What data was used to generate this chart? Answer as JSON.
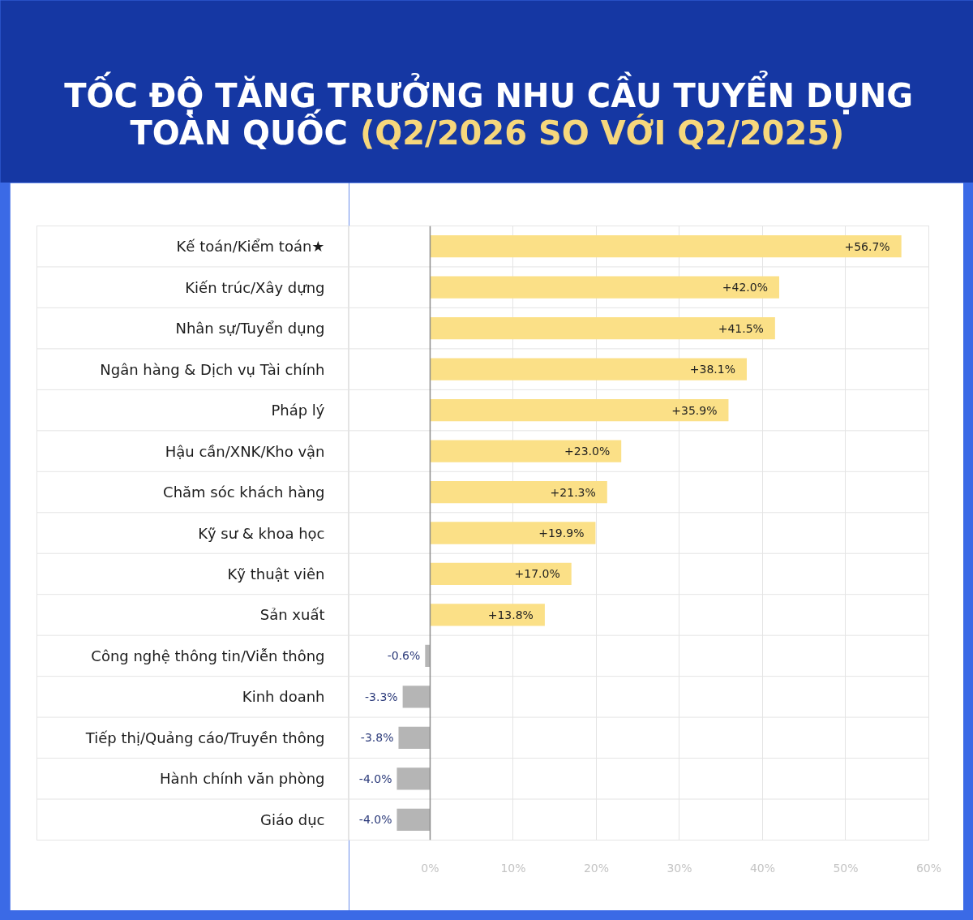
{
  "chart_data": {
    "type": "bar",
    "orientation": "horizontal",
    "title": "TỐC ĐỘ TĂNG TRƯỞNG NHU CẦU TUYỂN DỤNG TOÀN QUỐC",
    "subtitle": "(Q2/2026 SO VỚI Q2/2025)",
    "categories": [
      "Kế toán/Kiểm toán★",
      "Kiến trúc/Xây dựng",
      "Nhân sự/Tuyển dụng",
      "Ngân hàng & Dịch vụ Tài chính",
      "Pháp lý",
      "Hậu cần/XNK/Kho vận",
      "Chăm sóc khách hàng",
      "Kỹ sư & khoa học",
      "Kỹ thuật viên",
      "Sản xuất",
      "Công nghệ thông tin/Viễn thông",
      "Kinh doanh",
      "Tiếp thị/Quảng cáo/Truyền thông",
      "Hành chính văn phòng",
      "Giáo dục"
    ],
    "values": [
      56.7,
      42.0,
      41.5,
      38.1,
      35.9,
      23.0,
      21.3,
      19.9,
      17.0,
      13.8,
      -0.6,
      -3.3,
      -3.8,
      -4.0,
      -4.0
    ],
    "value_labels": [
      "+56.7%",
      "+42.0%",
      "+41.5%",
      "+38.1%",
      "+35.9%",
      "+23.0%",
      "+21.3%",
      "+19.9%",
      "+17.0%",
      "+13.8%",
      "-0.6%",
      "-3.3%",
      "-3.8%",
      "-4.0%",
      "-4.0%"
    ],
    "colors": [
      "#fbe087",
      "#fbe087",
      "#fbe087",
      "#fbe087",
      "#fbe087",
      "#fbe087",
      "#fbe087",
      "#fbe087",
      "#fbe087",
      "#fbe087",
      "#b5b5b5",
      "#b5b5b5",
      "#b5b5b5",
      "#b5b5b5",
      "#b5b5b5"
    ],
    "xlim": [
      -9.75,
      60
    ],
    "xticks": [
      {
        "value": 0,
        "label": "0%"
      },
      {
        "value": 10,
        "label": "10%"
      },
      {
        "value": 20,
        "label": "20%"
      },
      {
        "value": 30,
        "label": "30%"
      },
      {
        "value": 40,
        "label": "40%"
      },
      {
        "value": 50,
        "label": "50%"
      },
      {
        "value": 60,
        "label": "60%"
      }
    ],
    "grid": true
  }
}
